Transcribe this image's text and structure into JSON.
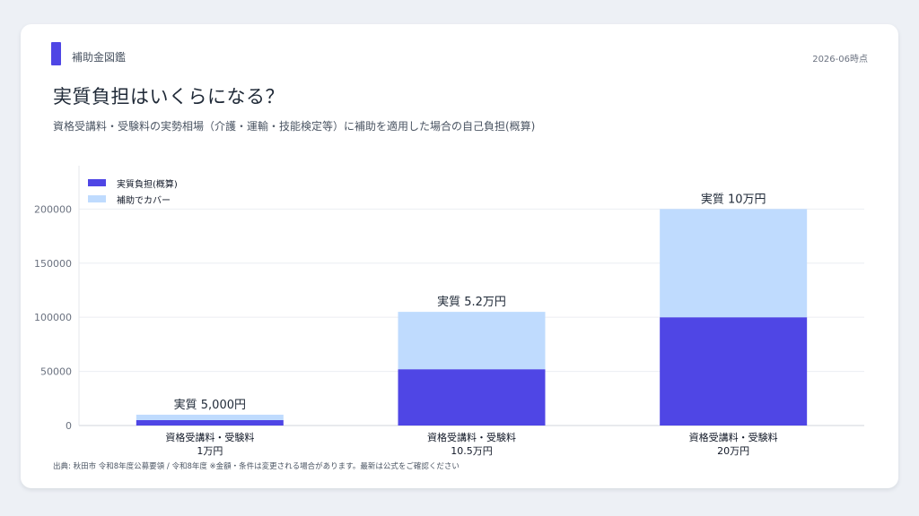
{
  "header": {
    "brand": "補助金図鑑",
    "as_of": "2026-06時点",
    "title": "実質負担はいくらになる？",
    "subtitle": "資格受講料・受験料の実勢相場（介護・運輸・技能検定等）に補助を適用した場合の自己負担(概算)"
  },
  "footer": {
    "source": "出典: 秋田市 令和8年度公募要領 / 令和8年度 ※金額・条件は変更される場合があります。最新は公式をご確認ください"
  },
  "colors": {
    "burden": "#4f46e5",
    "cover": "#bfdbfe",
    "accent": "#4f46e5"
  },
  "chart_data": {
    "type": "bar",
    "stacked": true,
    "categories": [
      [
        "資格受講料・受験料",
        "1万円"
      ],
      [
        "資格受講料・受験料",
        "10.5万円"
      ],
      [
        "資格受講料・受験料",
        "20万円"
      ]
    ],
    "series": [
      {
        "name": "実質負担(概算)",
        "values": [
          5000,
          52000,
          100000
        ],
        "color": "#4f46e5"
      },
      {
        "name": "補助でカバー",
        "values": [
          5000,
          53000,
          100000
        ],
        "color": "#bfdbfe"
      }
    ],
    "data_labels": [
      "実質 5,000円",
      "実質 5.2万円",
      "実質 10万円"
    ],
    "ylim": [
      0,
      240000
    ],
    "yticks": [
      0,
      50000,
      100000,
      150000,
      200000
    ],
    "grid": true,
    "legend_position": "top-left"
  }
}
